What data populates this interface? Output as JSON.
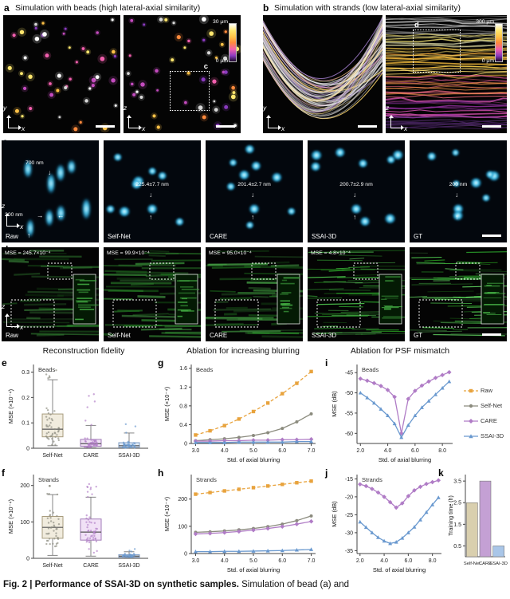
{
  "figure": {
    "icons": {
      "arrow_up": "↑",
      "arrow_down": "↓",
      "arrow_left": "←",
      "arrow_right": "→"
    },
    "series_colors": {
      "Raw": "#e8a33d",
      "Self-Net": "#8b8b7e",
      "CARE": "#b07cc6",
      "SSAI-3D": "#6a99cf"
    },
    "series_markers": {
      "Raw": "square",
      "Self-Net": "circle",
      "CARE": "diamond",
      "SSAI-3D": "triangle"
    },
    "panels": {
      "a": {
        "label": "a",
        "title": "Simulation with beads (high lateral-axial similarity)",
        "colorbar": {
          "top": "30 μm",
          "bottom": "0 μm"
        },
        "img1_axes": {
          "v": "y",
          "h": "x"
        },
        "img2_axes": {
          "v": "z",
          "h": "x"
        },
        "roi_label": "c"
      },
      "b": {
        "label": "b",
        "title": "Simulation with strands (low lateral-axial similarity)",
        "colorbar": {
          "top": "300 μm",
          "bottom": "0 μm"
        },
        "img1_axes": {
          "v": "y",
          "h": "x"
        },
        "img2_axes": {
          "v": "z",
          "h": "x"
        },
        "roi_label": "d"
      },
      "c": {
        "label": "c",
        "axes": {
          "v": "z",
          "h": "x"
        },
        "images": [
          {
            "name": "Raw",
            "ann_axial": "700 nm",
            "ann_lateral": "200 nm"
          },
          {
            "name": "Self-Net",
            "measurement": "225.4±7.7 nm"
          },
          {
            "name": "CARE",
            "measurement": "201.4±2.7 nm"
          },
          {
            "name": "SSAI-3D",
            "measurement": "200.7±2.9 nm"
          },
          {
            "name": "GT",
            "measurement": "200 nm"
          }
        ]
      },
      "d": {
        "label": "d",
        "axes": {
          "v": "z",
          "h": "x"
        },
        "images": [
          {
            "name": "Raw",
            "mse": "MSE = 245.7×10⁻⁴"
          },
          {
            "name": "Self-Net",
            "mse": "MSE = 99.9×10⁻⁴"
          },
          {
            "name": "CARE",
            "mse": "MSE = 95.0×10⁻⁴"
          },
          {
            "name": "SSAI-3D",
            "mse": "MSE = 4.8×10⁻⁴"
          },
          {
            "name": "GT",
            "mse": ""
          }
        ]
      },
      "e": {
        "label": "e"
      },
      "f": {
        "label": "f"
      },
      "g": {
        "label": "g"
      },
      "h": {
        "label": "h"
      },
      "i": {
        "label": "i"
      },
      "j": {
        "label": "j"
      },
      "k": {
        "label": "k"
      }
    },
    "section_titles": [
      "Reconstruction fidelity",
      "Ablation for increasing blurring",
      "Ablation for PSF mismatch"
    ],
    "legend": {
      "items": [
        {
          "label": "Raw",
          "color": "#e8a33d",
          "dash": true,
          "marker": "square"
        },
        {
          "label": "Self-Net",
          "color": "#8b8b7e",
          "dash": false,
          "marker": "circle"
        },
        {
          "label": "CARE",
          "color": "#b07cc6",
          "dash": false,
          "marker": "diamond"
        },
        {
          "label": "SSAI-3D",
          "color": "#6a99cf",
          "dash": false,
          "marker": "triangle"
        }
      ]
    },
    "caption_bold": "Fig. 2 | Performance of SSAI-3D on synthetic samples.",
    "caption_rest": " Simulation of bead (a) and"
  },
  "chart_data": [
    {
      "id": "e",
      "type": "box",
      "inset_label": "Beads",
      "ylabel": "MSE (×10⁻⁴)",
      "ylim": [
        0,
        0.33
      ],
      "yticks": [
        0,
        0.1,
        0.2,
        0.3
      ],
      "categories": [
        "Self-Net",
        "CARE",
        "SSAI-3D"
      ],
      "boxes": [
        {
          "whislo": 0.01,
          "q1": 0.045,
          "med": 0.075,
          "q3": 0.135,
          "whishi": 0.27,
          "outlier_max": 0.31,
          "n": 46
        },
        {
          "whislo": 0.002,
          "q1": 0.008,
          "med": 0.018,
          "q3": 0.035,
          "whishi": 0.09,
          "outlier_max": 0.24,
          "n": 46
        },
        {
          "whislo": 0.001,
          "q1": 0.004,
          "med": 0.01,
          "q3": 0.022,
          "whishi": 0.06,
          "outlier_max": 0.12,
          "n": 40
        }
      ],
      "box_styles": [
        {
          "fill": "#efe9d8",
          "stroke": "#a89c7e"
        },
        {
          "fill": "#eedcf4",
          "stroke": "#a27cb8"
        },
        {
          "fill": "#dce7f4",
          "stroke": "#7f9cc5"
        }
      ]
    },
    {
      "id": "f",
      "type": "box",
      "inset_label": "Strands",
      "ylabel": "MSE (×10⁻⁴)",
      "ylim": [
        0,
        230
      ],
      "yticks": [
        0,
        100,
        200
      ],
      "categories": [
        "Self-Net",
        "CARE",
        "SSAI-3D"
      ],
      "boxes": [
        {
          "whislo": 8,
          "q1": 55,
          "med": 85,
          "q3": 115,
          "whishi": 175,
          "outlier_max": 215,
          "n": 46
        },
        {
          "whislo": 6,
          "q1": 50,
          "med": 72,
          "q3": 108,
          "whishi": 168,
          "outlier_max": 205,
          "n": 48
        },
        {
          "whislo": 1,
          "q1": 3,
          "med": 6,
          "q3": 10,
          "whishi": 18,
          "outlier_max": 28,
          "n": 34
        }
      ],
      "box_styles": [
        {
          "fill": "#efe9d8",
          "stroke": "#a89c7e"
        },
        {
          "fill": "#eedcf4",
          "stroke": "#a27cb8"
        },
        {
          "fill": "#dce7f4",
          "stroke": "#7f9cc5"
        }
      ]
    },
    {
      "id": "g",
      "type": "line",
      "inset_label": "Beads",
      "xlabel": "Std. of axial blurring",
      "ylabel": "MSE (×10⁻⁴)",
      "xlim": [
        2.85,
        7.15
      ],
      "xticks": [
        3,
        4,
        5,
        6,
        7
      ],
      "xtick_decimals": 1,
      "ylim": [
        0,
        1.68
      ],
      "yticks": [
        0,
        0.4,
        0.8,
        1.2,
        1.6
      ],
      "x": [
        3,
        3.5,
        4,
        4.5,
        5,
        5.5,
        6,
        6.5,
        7
      ],
      "series": [
        {
          "name": "Raw",
          "values": [
            0.18,
            0.27,
            0.38,
            0.52,
            0.68,
            0.86,
            1.06,
            1.28,
            1.53
          ]
        },
        {
          "name": "Self-Net",
          "values": [
            0.06,
            0.08,
            0.1,
            0.13,
            0.17,
            0.23,
            0.32,
            0.46,
            0.63
          ]
        },
        {
          "name": "CARE",
          "values": [
            0.05,
            0.05,
            0.06,
            0.06,
            0.07,
            0.07,
            0.08,
            0.08,
            0.09
          ]
        },
        {
          "name": "SSAI-3D",
          "values": [
            0.02,
            0.02,
            0.02,
            0.03,
            0.03,
            0.03,
            0.03,
            0.04,
            0.04
          ]
        }
      ]
    },
    {
      "id": "h",
      "type": "line",
      "inset_label": "Strands",
      "xlabel": "Std. of axial blurring",
      "ylabel": "MSE (×10⁻⁴)",
      "xlim": [
        2.85,
        7.15
      ],
      "xticks": [
        3,
        4,
        5,
        6,
        7
      ],
      "xtick_decimals": 1,
      "ylim": [
        0,
        290
      ],
      "yticks": [
        0,
        100,
        200
      ],
      "x": [
        3,
        3.5,
        4,
        4.5,
        5,
        5.5,
        6,
        6.5,
        7
      ],
      "series": [
        {
          "name": "Raw",
          "values": [
            218,
            224,
            230,
            236,
            242,
            248,
            254,
            260,
            266
          ]
        },
        {
          "name": "Self-Net",
          "values": [
            78,
            80,
            83,
            87,
            92,
            99,
            108,
            121,
            138
          ]
        },
        {
          "name": "CARE",
          "values": [
            72,
            74,
            77,
            81,
            86,
            92,
            99,
            108,
            118
          ]
        },
        {
          "name": "SSAI-3D",
          "values": [
            7,
            7,
            8,
            8,
            9,
            10,
            11,
            13,
            15
          ]
        }
      ]
    },
    {
      "id": "i",
      "type": "line",
      "inset_label": "Beads",
      "xlabel": "Std. of axial blurring",
      "ylabel": "MSE (dB)",
      "xlim": [
        1.75,
        8.75
      ],
      "xticks": [
        2,
        4,
        6,
        8
      ],
      "xtick_decimals": 1,
      "ylim": [
        -62.5,
        -43
      ],
      "yticks": [
        -60,
        -55,
        -50,
        -45
      ],
      "x": [
        2,
        2.5,
        3,
        3.5,
        4,
        4.5,
        5,
        5.5,
        6,
        6.5,
        7,
        7.5,
        8,
        8.5
      ],
      "series": [
        {
          "name": "CARE",
          "values": [
            -46.5,
            -47,
            -47.6,
            -48.3,
            -49.3,
            -51,
            -60,
            -51.5,
            -49.5,
            -48.2,
            -47.2,
            -46.3,
            -45.6,
            -44.9
          ]
        },
        {
          "name": "SSAI-3D",
          "values": [
            -50,
            -51.2,
            -52.5,
            -54,
            -55.6,
            -57.6,
            -61,
            -58,
            -55.6,
            -53.6,
            -52,
            -50.4,
            -48.8,
            -47.2
          ]
        }
      ]
    },
    {
      "id": "j",
      "type": "line",
      "inset_label": "Strands",
      "xlabel": "Std. of axial blurring",
      "ylabel": "MSE (dB)",
      "xlim": [
        1.75,
        8.75
      ],
      "xticks": [
        2,
        4,
        6,
        8
      ],
      "xtick_decimals": 1,
      "ylim": [
        -35.8,
        -13.8
      ],
      "yticks": [
        -35,
        -30,
        -25,
        -20,
        -15
      ],
      "x": [
        2,
        2.5,
        3,
        3.5,
        4,
        4.5,
        5,
        5.5,
        6,
        6.5,
        7,
        7.5,
        8,
        8.5
      ],
      "series": [
        {
          "name": "CARE",
          "values": [
            -16.5,
            -17,
            -17.8,
            -18.8,
            -20,
            -21.5,
            -23,
            -21.8,
            -19.8,
            -18.2,
            -17.2,
            -16.4,
            -15.9,
            -15.4
          ]
        },
        {
          "name": "SSAI-3D",
          "values": [
            -27,
            -28.5,
            -30,
            -31.3,
            -32.3,
            -33,
            -32.6,
            -31.5,
            -30,
            -28.4,
            -26.4,
            -24.3,
            -22.2,
            -20.2
          ]
        }
      ]
    },
    {
      "id": "k",
      "type": "bar",
      "ylabel": "Training time (h)",
      "ylim": [
        0,
        3.8
      ],
      "yticks": [
        0.5,
        1.5,
        2.5,
        3.5
      ],
      "categories": [
        "Self-Net",
        "CARE",
        "SSAI-3D"
      ],
      "values": [
        2.5,
        3.5,
        0.5
      ],
      "bar_colors": [
        "#d9cfae",
        "#c4a0d4",
        "#a9c6e8"
      ]
    }
  ]
}
